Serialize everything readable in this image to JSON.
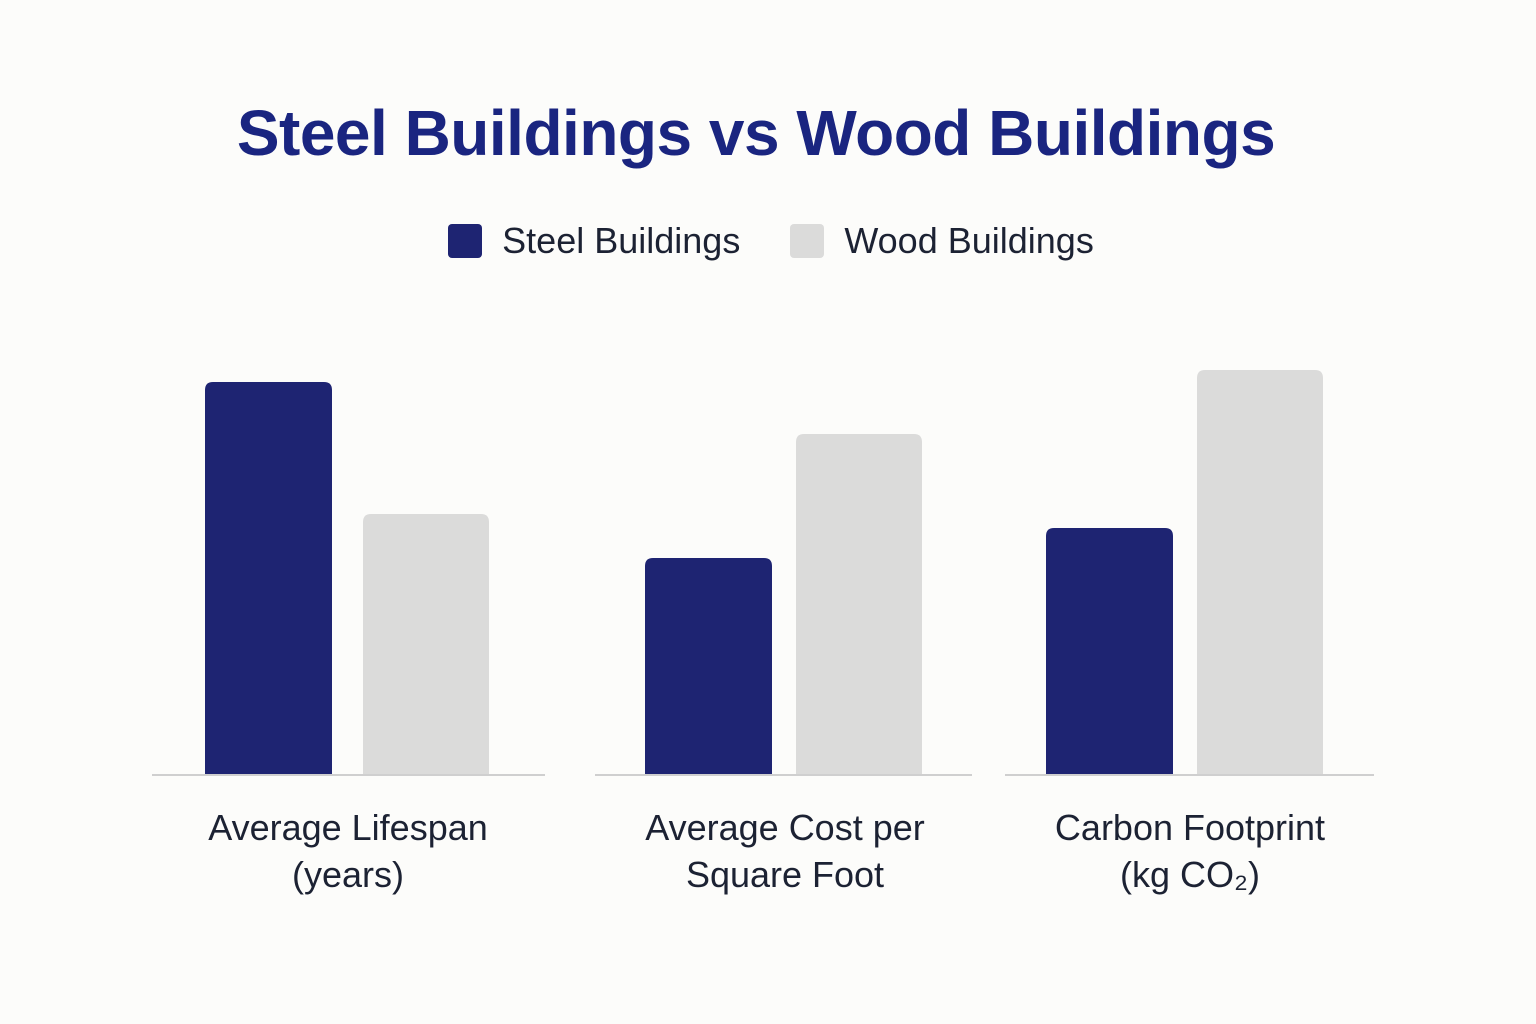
{
  "chart_data": {
    "type": "bar",
    "title": "Steel Buildings vs Wood Buildings",
    "categories": [
      [
        "Average Lifespan",
        "(years)"
      ],
      [
        "Average Cost per",
        "Square Foot"
      ],
      [
        "Carbon Footprint",
        "(kg CO₂)"
      ]
    ],
    "series": [
      {
        "name": "Steel Buildings",
        "color": "#1e2472",
        "values": [
          98,
          54,
          61.5
        ]
      },
      {
        "name": "Wood Buildings",
        "color": "#dbdbda",
        "values": [
          65,
          85,
          101
        ]
      }
    ],
    "ylim": [
      0,
      100
    ],
    "grid": false,
    "legend_position": "top-center",
    "xlabel": "",
    "ylabel": ""
  }
}
